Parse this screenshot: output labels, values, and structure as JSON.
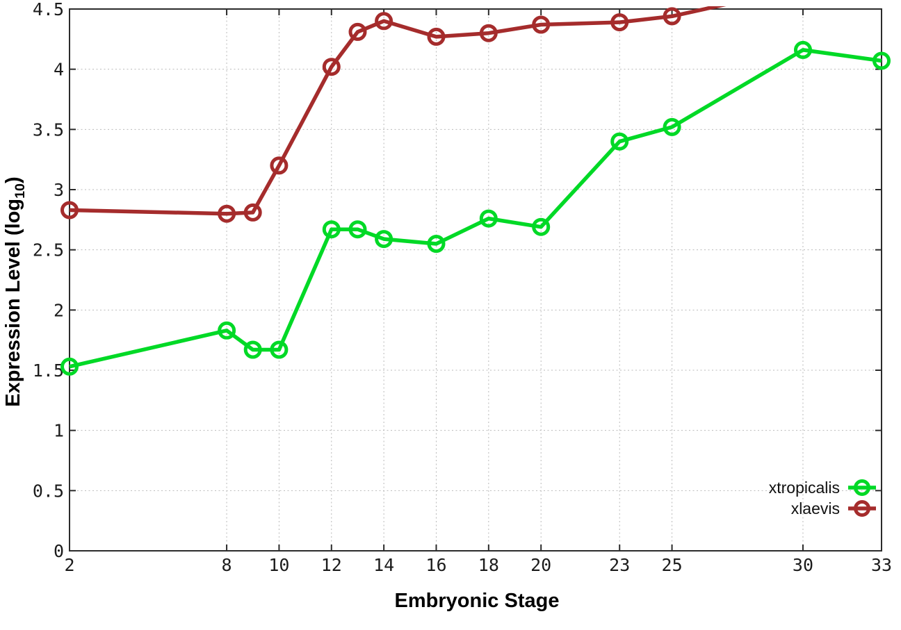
{
  "chart_data": {
    "type": "line",
    "title": "",
    "xlabel": "Embryonic Stage",
    "ylabel": "Expression Level (log10)",
    "ylabel_parts": {
      "prefix": "Expression Level (log",
      "sub": "10",
      "suffix": ")"
    },
    "xlim": [
      2,
      33
    ],
    "ylim": [
      0,
      4.5
    ],
    "xticks": [
      2,
      8,
      10,
      12,
      14,
      16,
      18,
      20,
      23,
      25,
      30,
      33
    ],
    "xtick_labels": [
      "2",
      "8",
      "10",
      "12",
      "14",
      "16",
      "18",
      "20",
      "23",
      "25",
      "30",
      "33"
    ],
    "yticks": [
      0,
      0.5,
      1,
      1.5,
      2,
      2.5,
      3,
      3.5,
      4,
      4.5
    ],
    "ytick_labels": [
      "0",
      "0.5",
      "1",
      "1.5",
      "2",
      "2.5",
      "3",
      "3.5",
      "4",
      "4.5"
    ],
    "grid": true,
    "grid_style": "dotted",
    "legend_position": "inside-bottom-right",
    "marker": "open-circle",
    "colors": {
      "background": "#ffffff",
      "axis": "#2b2b2b",
      "grid": "#b9b9b9",
      "text": "#1c1c1c"
    },
    "series": [
      {
        "name": "xtropicalis",
        "color": "#00d926",
        "points": [
          [
            2,
            1.53
          ],
          [
            8,
            1.83
          ],
          [
            9,
            1.67
          ],
          [
            10,
            1.67
          ],
          [
            12,
            2.67
          ],
          [
            13,
            2.67
          ],
          [
            14,
            2.59
          ],
          [
            16,
            2.55
          ],
          [
            18,
            2.76
          ],
          [
            20,
            2.69
          ],
          [
            23,
            3.4
          ],
          [
            25,
            3.52
          ],
          [
            30,
            4.16
          ],
          [
            33,
            4.07
          ]
        ]
      },
      {
        "name": "xlaevis",
        "color": "#a52c2c",
        "points": [
          [
            2,
            2.83
          ],
          [
            8,
            2.8
          ],
          [
            9,
            2.81
          ],
          [
            10,
            3.2
          ],
          [
            12,
            4.02
          ],
          [
            13,
            4.31
          ],
          [
            14,
            4.4
          ],
          [
            16,
            4.27
          ],
          [
            18,
            4.3
          ],
          [
            20,
            4.37
          ],
          [
            23,
            4.39
          ],
          [
            25,
            4.44
          ]
        ],
        "continues_offscreen": [
          30,
          4.68
        ]
      }
    ]
  }
}
